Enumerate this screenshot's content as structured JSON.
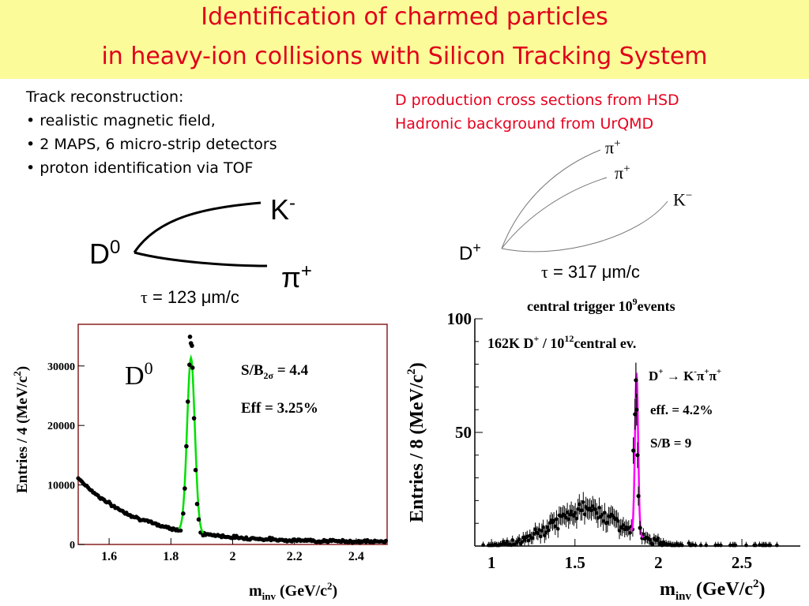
{
  "title": {
    "line1": "Identification of charmed particles",
    "line2": "in heavy-ion collisions with Silicon Tracking System"
  },
  "colors": {
    "title_band": "#fbfb9a",
    "title_text": "#e0001a",
    "note_red": "#e8001e",
    "d0_fit": "#00e000",
    "dplus_fit": "#ff00ff",
    "left_frame": "#8b2020"
  },
  "left_notes": [
    "Track reconstruction:",
    "• realistic magnetic field,",
    "• 2 MAPS, 6 micro-strip detectors",
    "• proton identification via TOF"
  ],
  "right_notes": [
    "D production cross sections from HSD",
    "Hadronic background from UrQMD"
  ],
  "d0_decay": {
    "parent": "D",
    "parent_sup": "0",
    "k": "K",
    "k_sup": "-",
    "pi": "π",
    "pi_sup": "+",
    "tau_symbol": "τ",
    "tau_text": " = 123 μm/c"
  },
  "dplus_decay": {
    "parent": "D",
    "parent_sup": "+",
    "pi1": "π",
    "pi1_sup": "+",
    "pi2": "π",
    "pi2_sup": "+",
    "k": "K",
    "k_sup": "−",
    "tau_symbol": "τ",
    "tau_text": " = 317 μm/c"
  },
  "chart_data": [
    {
      "type": "scatter",
      "panel": "left",
      "xlabel": "m",
      "xlabel_sub": "inv",
      "xlabel_unit": " (GeV/c",
      "xlabel_unit_sup": "2",
      "xlabel_close": ")",
      "ylabel": "Entries / 4 (MeV/c",
      "ylabel_sup": "2",
      "ylabel_close": ")",
      "xlim": [
        1.5,
        2.5
      ],
      "ylim": [
        0,
        37000
      ],
      "xticks": [
        "1.6",
        "1.8",
        "2",
        "2.2",
        "2.4"
      ],
      "xtick_values": [
        1.6,
        1.8,
        2.0,
        2.2,
        2.4
      ],
      "yticks": [
        "0",
        "10000",
        "20000",
        "30000"
      ],
      "ytick_values": [
        0,
        10000,
        20000,
        30000
      ],
      "peak_label": "D",
      "peak_label_sup": "0",
      "annotations": {
        "sb_prefix": "S/B",
        "sb_sub": "2σ",
        "sb_value": " = 4.4",
        "eff": "Eff = 3.25%"
      },
      "background_model": {
        "a": 10800,
        "b": 5.1,
        "x0": 1.5
      },
      "signal_model": {
        "amplitude": 29300,
        "mean": 1.865,
        "sigma": 0.0125
      },
      "series": [
        {
          "name": "",
          "kind": "points",
          "x": [
            1.84,
            1.845,
            1.85,
            1.855,
            1.86,
            1.862,
            1.865,
            1.868,
            1.87,
            1.875,
            1.88,
            1.885,
            1.89
          ],
          "y": [
            5200,
            9400,
            16500,
            24000,
            30200,
            34900,
            33800,
            33400,
            29700,
            21200,
            12500,
            6800,
            4200
          ]
        }
      ]
    },
    {
      "type": "scatter",
      "panel": "right",
      "title": "central trigger  10",
      "title_sup": "9",
      "title_end": "events",
      "xlabel": "m",
      "xlabel_sub": "inv",
      "xlabel_unit": " (GeV/c",
      "xlabel_unit_sup": "2",
      "xlabel_close": ")",
      "ylabel": "Entries / 8 (MeV/c",
      "ylabel_sup": "2",
      "ylabel_close": ")",
      "xlim": [
        0.9,
        2.85
      ],
      "ylim": [
        0,
        100
      ],
      "xticks": [
        "1",
        "1.5",
        "2",
        "2.5"
      ],
      "xtick_values": [
        1.0,
        1.5,
        2.0,
        2.5
      ],
      "yticks": [
        "50",
        "100"
      ],
      "ytick_values": [
        50,
        100
      ],
      "peak_label": "",
      "annotations": {
        "stat_a": "162K D",
        "stat_a_sup": "+",
        "stat_b": " / 10",
        "stat_b_sup": "12",
        "stat_c": "central ev.",
        "decay_d": "D",
        "decay_d_sup": "+",
        "decay_arrow": " → K",
        "decay_k_sup": "-",
        "decay_pi1": "π",
        "decay_pi1_sup": "+",
        "decay_pi2": "π",
        "decay_pi2_sup": "+",
        "eff": "eff. = 4.2%",
        "sb": "S/B = 9"
      },
      "background_model": {
        "amplitude": 16,
        "mean": 1.57,
        "sigma": 0.2
      },
      "signal_model": {
        "amplitude": 70,
        "mean": 1.869,
        "sigma": 0.0095
      },
      "series": [
        {
          "name": "",
          "kind": "points",
          "x": [
            1.85,
            1.86,
            1.865,
            1.87,
            1.875,
            1.88,
            1.89
          ],
          "y": [
            42,
            58,
            73,
            60,
            40,
            22,
            8
          ]
        }
      ]
    }
  ]
}
